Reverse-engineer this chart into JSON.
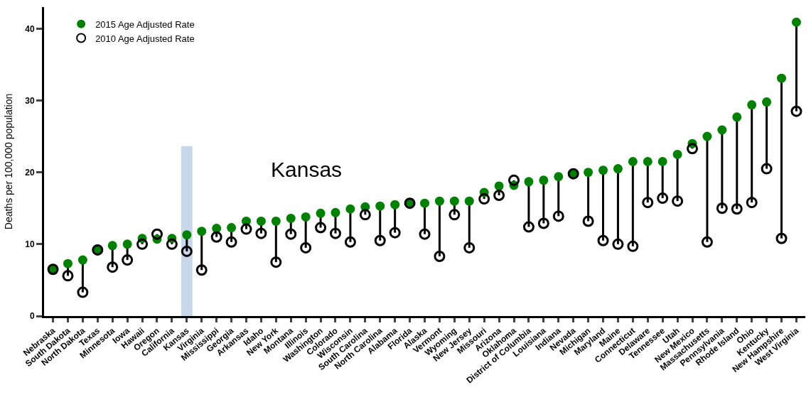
{
  "chart_data": {
    "type": "scatter",
    "ylabel": "Deaths per 100,000 population",
    "categories": [
      "Nebraska",
      "South Dakota",
      "North Dakota",
      "Texas",
      "Minnesota",
      "Iowa",
      "Hawaii",
      "Oregon",
      "California",
      "Kansas",
      "Virginia",
      "Mississippi",
      "Georgia",
      "Arkansas",
      "Idaho",
      "New York",
      "Montana",
      "Illinois",
      "Washington",
      "Colorado",
      "Wisconsin",
      "South Carolina",
      "North Carolina",
      "Alabama",
      "Florida",
      "Alaska",
      "Vermont",
      "Wyoming",
      "New Jersey",
      "Missouri",
      "Arizona",
      "Oklahoma",
      "District of Columbia",
      "Louisiana",
      "Indiana",
      "Nevada",
      "Michigan",
      "Maryland",
      "Maine",
      "Connecticut",
      "Delaware",
      "Tennessee",
      "Utah",
      "New Mexico",
      "Massachusetts",
      "Pennsylvania",
      "Rhode Island",
      "Ohio",
      "Kentucky",
      "New Hampshire",
      "West Virginia"
    ],
    "series": [
      {
        "name": "2015 Age Adjusted Rate",
        "color": "#008000",
        "values": [
          6.6,
          7.3,
          7.8,
          9.2,
          9.8,
          10.0,
          10.8,
          10.7,
          10.8,
          11.3,
          11.8,
          12.2,
          12.3,
          13.2,
          13.2,
          13.2,
          13.6,
          13.8,
          14.3,
          14.4,
          14.9,
          15.2,
          15.3,
          15.5,
          15.7,
          15.7,
          16.0,
          16.0,
          16.0,
          17.2,
          18.1,
          18.2,
          18.7,
          18.9,
          19.4,
          19.8,
          20.0,
          20.3,
          20.5,
          21.5,
          21.5,
          21.5,
          22.5,
          24.0,
          25.0,
          25.9,
          27.7,
          29.4,
          29.8,
          33.1,
          40.9
        ]
      },
      {
        "name": "2010 Age Adjusted Rate",
        "color": "#000000",
        "values": [
          6.5,
          5.6,
          3.3,
          9.2,
          6.8,
          7.8,
          10.0,
          11.4,
          10.0,
          9.0,
          6.4,
          11.0,
          10.3,
          12.1,
          11.5,
          7.5,
          11.4,
          9.5,
          12.3,
          11.5,
          10.3,
          14.1,
          10.5,
          11.6,
          15.7,
          11.4,
          8.3,
          14.1,
          9.5,
          16.3,
          16.8,
          18.9,
          12.4,
          12.9,
          13.9,
          19.8,
          13.2,
          10.5,
          10.0,
          9.7,
          15.8,
          16.4,
          16.0,
          23.3,
          10.3,
          15.0,
          14.9,
          15.8,
          20.5,
          10.8,
          28.5
        ]
      }
    ],
    "ylim": [
      0,
      43
    ],
    "yticks": [
      0,
      10,
      20,
      30,
      40
    ],
    "grid": false,
    "legend": "top left",
    "marker": "circle",
    "bands": [
      {
        "axis": "x",
        "from": "Kansas",
        "to": "Kansas",
        "color": "#c9d7ea"
      }
    ],
    "annotations": [
      "Kansas"
    ]
  }
}
